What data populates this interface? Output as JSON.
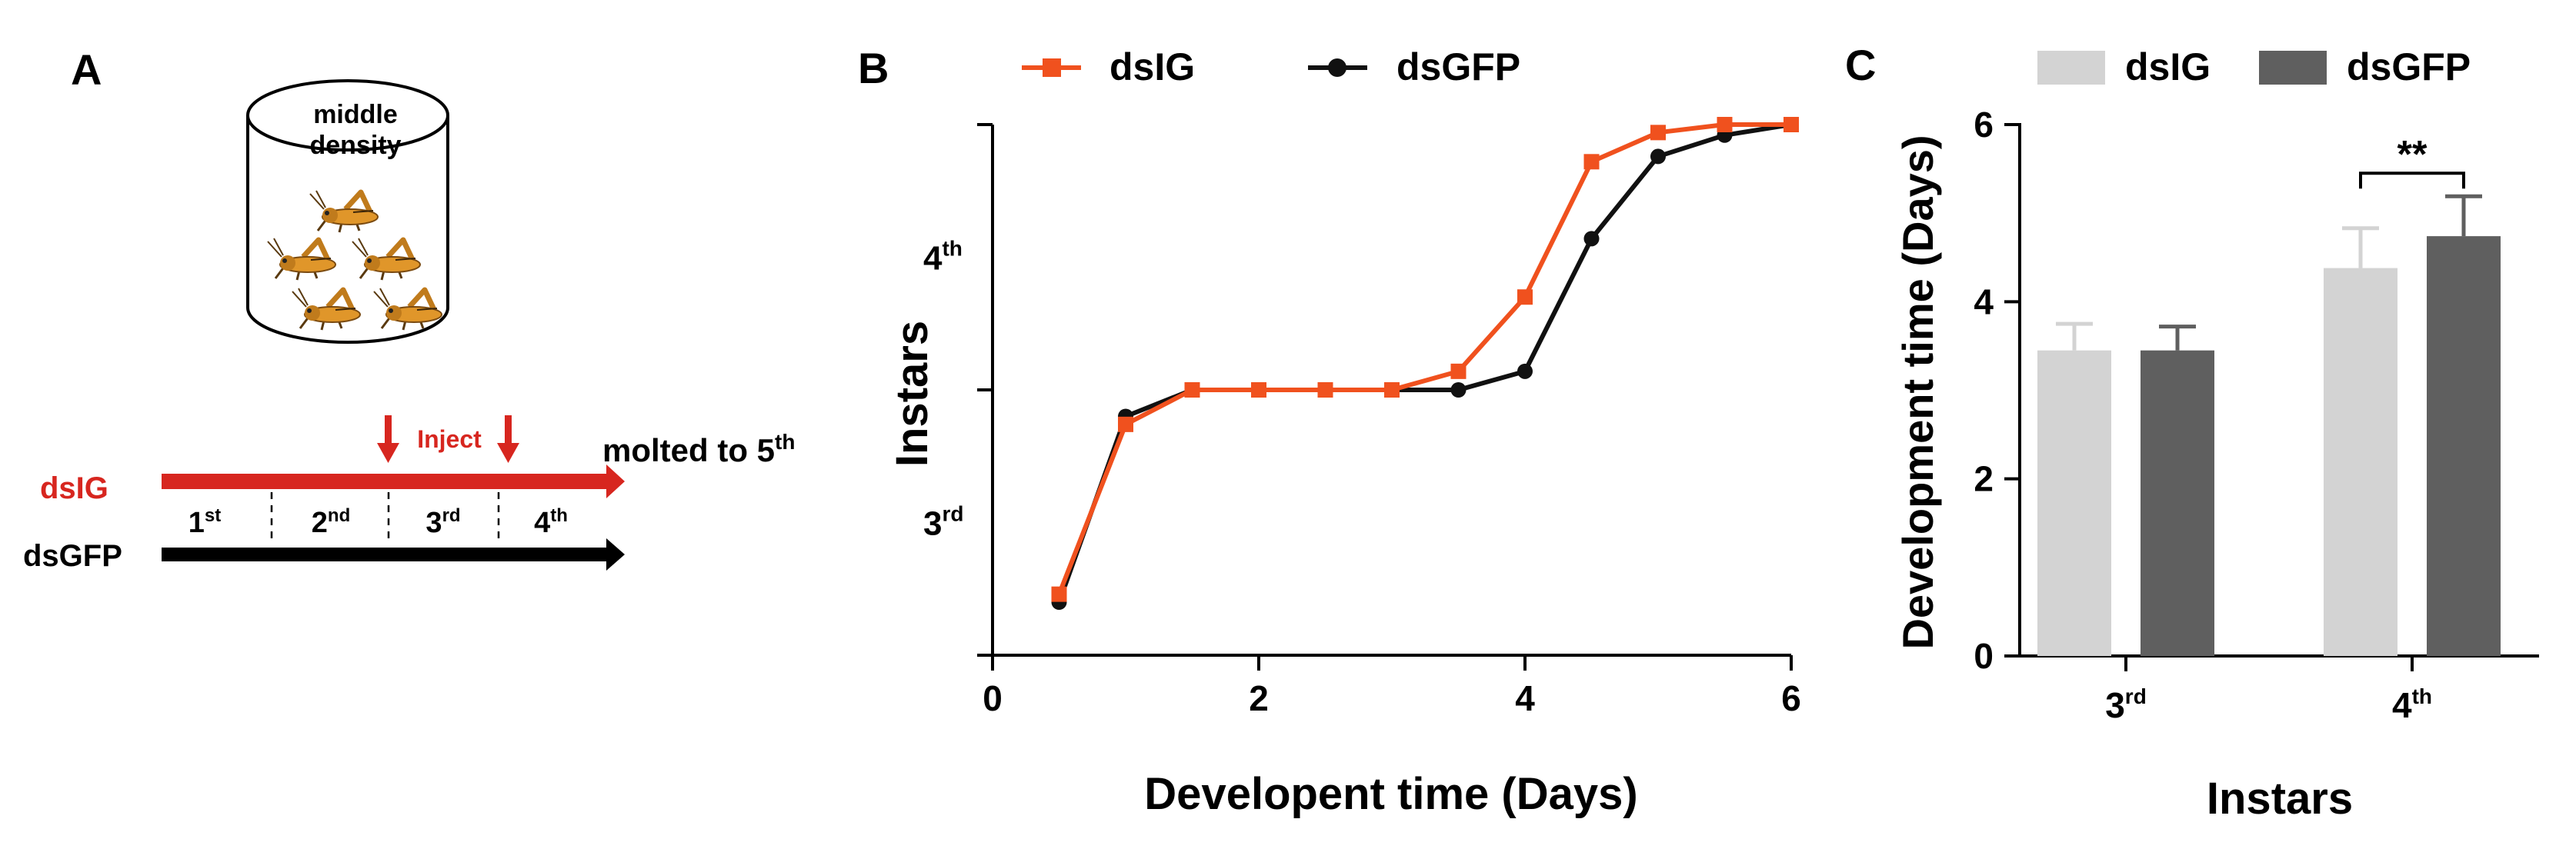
{
  "panel_a": {
    "label": "A",
    "container_line1": "middle",
    "container_line2": "density",
    "inject": "Inject",
    "molted_prefix": "molted to 5",
    "molted_sup": "th",
    "group_dsig": "dsIG",
    "group_dsgfp": "dsGFP",
    "stages": [
      {
        "num": "1",
        "sup": "st"
      },
      {
        "num": "2",
        "sup": "nd"
      },
      {
        "num": "3",
        "sup": "rd"
      },
      {
        "num": "4",
        "sup": "th"
      }
    ],
    "colors": {
      "red": "#d7261f",
      "black": "#000000",
      "insect": "#e0962a"
    }
  },
  "chart_data": [
    {
      "panel": "B",
      "type": "line",
      "title": "",
      "xlabel": "Developent time (Days)",
      "ylabel": "Instars",
      "xlim": [
        0,
        6
      ],
      "xticks": [
        0,
        2,
        4,
        6
      ],
      "ylim": [
        2.0,
        4.0
      ],
      "yticks": [
        {
          "value": 3.5,
          "num": "4",
          "sup": "th"
        },
        {
          "value": 2.5,
          "num": "3",
          "sup": "rd"
        }
      ],
      "x": [
        0.5,
        1.0,
        1.5,
        2.0,
        2.5,
        3.0,
        3.5,
        4.0,
        4.5,
        5.0,
        5.5,
        6.0
      ],
      "series": [
        {
          "name": "dsIG",
          "color": "#f0511e",
          "marker": "square",
          "values": [
            2.23,
            2.87,
            3.0,
            3.0,
            3.0,
            3.0,
            3.07,
            3.35,
            3.86,
            3.97,
            4.0,
            4.0
          ]
        },
        {
          "name": "dsGFP",
          "color": "#111111",
          "marker": "circle",
          "values": [
            2.2,
            2.9,
            3.0,
            3.0,
            3.0,
            3.0,
            3.0,
            3.07,
            3.57,
            3.88,
            3.96,
            4.0
          ]
        }
      ],
      "legend": "top"
    },
    {
      "panel": "C",
      "type": "bar",
      "title": "",
      "xlabel": "Instars",
      "ylabel": "Development time (Days)",
      "ylim": [
        0,
        6
      ],
      "yticks": [
        0,
        2,
        4,
        6
      ],
      "categories": [
        {
          "num": "3",
          "sup": "rd"
        },
        {
          "num": "4",
          "sup": "th"
        }
      ],
      "series": [
        {
          "name": "dsIG",
          "color": "#d3d3d3",
          "values": [
            3.45,
            4.38
          ],
          "errors": [
            0.3,
            0.45
          ]
        },
        {
          "name": "dsGFP",
          "color": "#5f5f5f",
          "values": [
            3.45,
            4.74
          ],
          "errors": [
            0.27,
            0.45
          ]
        }
      ],
      "annotations": [
        {
          "text": "**",
          "category_index": 1
        }
      ],
      "legend": "top"
    }
  ]
}
